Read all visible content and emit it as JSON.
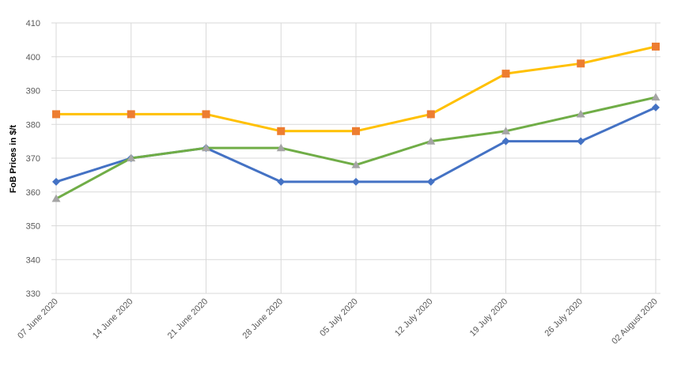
{
  "chart_data": {
    "type": "line",
    "title": "",
    "xlabel": "",
    "ylabel": "FoB Prices in $/t",
    "ylim": [
      330,
      410
    ],
    "yticks": [
      330,
      340,
      350,
      360,
      370,
      380,
      390,
      400,
      410
    ],
    "grid": true,
    "categories": [
      "07 June 2020",
      "14 June 2020",
      "21 June 2020",
      "28 June 2020",
      "05 July 2020",
      "12 July 2020",
      "19 July 2020",
      "26 July 2020",
      "02 August 2020"
    ],
    "series": [
      {
        "color": "#4472C4",
        "marker": "diamond",
        "values": [
          363,
          370,
          373,
          363,
          363,
          363,
          375,
          375,
          385
        ]
      },
      {
        "color": "#FFC000",
        "marker_color": "#ED7D31",
        "marker": "square",
        "values": [
          383,
          383,
          383,
          378,
          378,
          383,
          395,
          398,
          403
        ]
      },
      {
        "color": "#70AD47",
        "marker_color": "#A5A5A5",
        "marker": "triangle",
        "values": [
          358,
          370,
          373,
          373,
          368,
          375,
          378,
          383,
          388
        ]
      }
    ]
  }
}
